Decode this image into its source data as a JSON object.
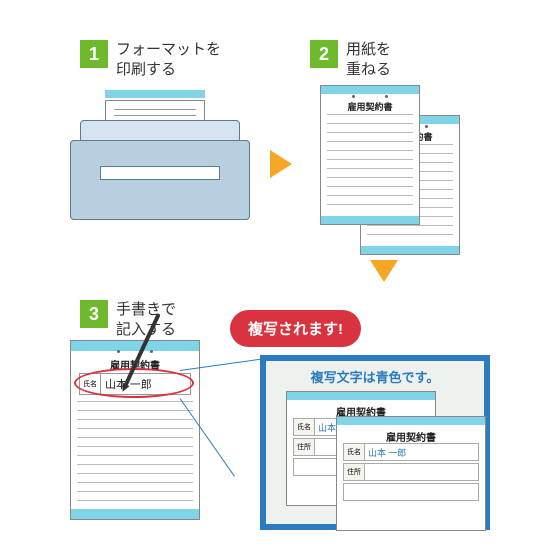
{
  "steps": {
    "s1": {
      "num": "1",
      "label": "フォーマットを\n印刷する"
    },
    "s2": {
      "num": "2",
      "label": "用紙を\n重ねる"
    },
    "s3": {
      "num": "3",
      "label": "手書きで\n記入する"
    }
  },
  "doc_title": "雇用契約書",
  "name_label": "氏名",
  "name_value": "山本 一郎",
  "addr_label": "住所",
  "badge_text": "複写されます!",
  "zoom_note": "複写文字は青色です。",
  "colors": {
    "step_green": "#6fba2c",
    "arrow": "#f5a623",
    "badge_red": "#d9333f",
    "zoom_blue": "#2b7bbf",
    "paper_blue": "#7fd4e8"
  }
}
